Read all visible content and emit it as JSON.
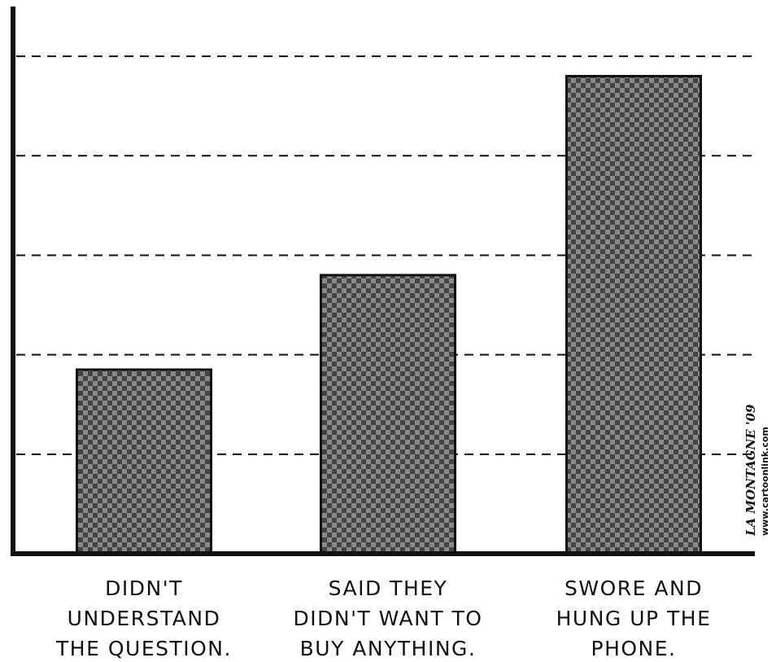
{
  "chart_data": {
    "type": "bar",
    "title": "",
    "xlabel": "",
    "ylabel": "",
    "categories": [
      [
        "DIDN'T",
        "UNDERSTAND",
        "THE QUESTION."
      ],
      [
        "SAID THEY",
        "DIDN'T WANT TO",
        "BUY ANYTHING."
      ],
      [
        "SWORE AND",
        "HUNG UP THE",
        "PHONE."
      ]
    ],
    "values": [
      1.85,
      2.8,
      4.8
    ],
    "ylim": [
      0,
      5.5
    ],
    "gridlines": [
      1,
      2,
      3,
      4,
      5
    ],
    "grid": true,
    "grid_style": "dashed",
    "bar_fill": "checkered",
    "colors": {
      "bar_dark": "#444444",
      "bar_light": "#8a8a8a",
      "ink": "#111111"
    }
  },
  "credit": {
    "signature": "LA MONTAGNE '09",
    "website": "www.cartoonlink.com"
  }
}
